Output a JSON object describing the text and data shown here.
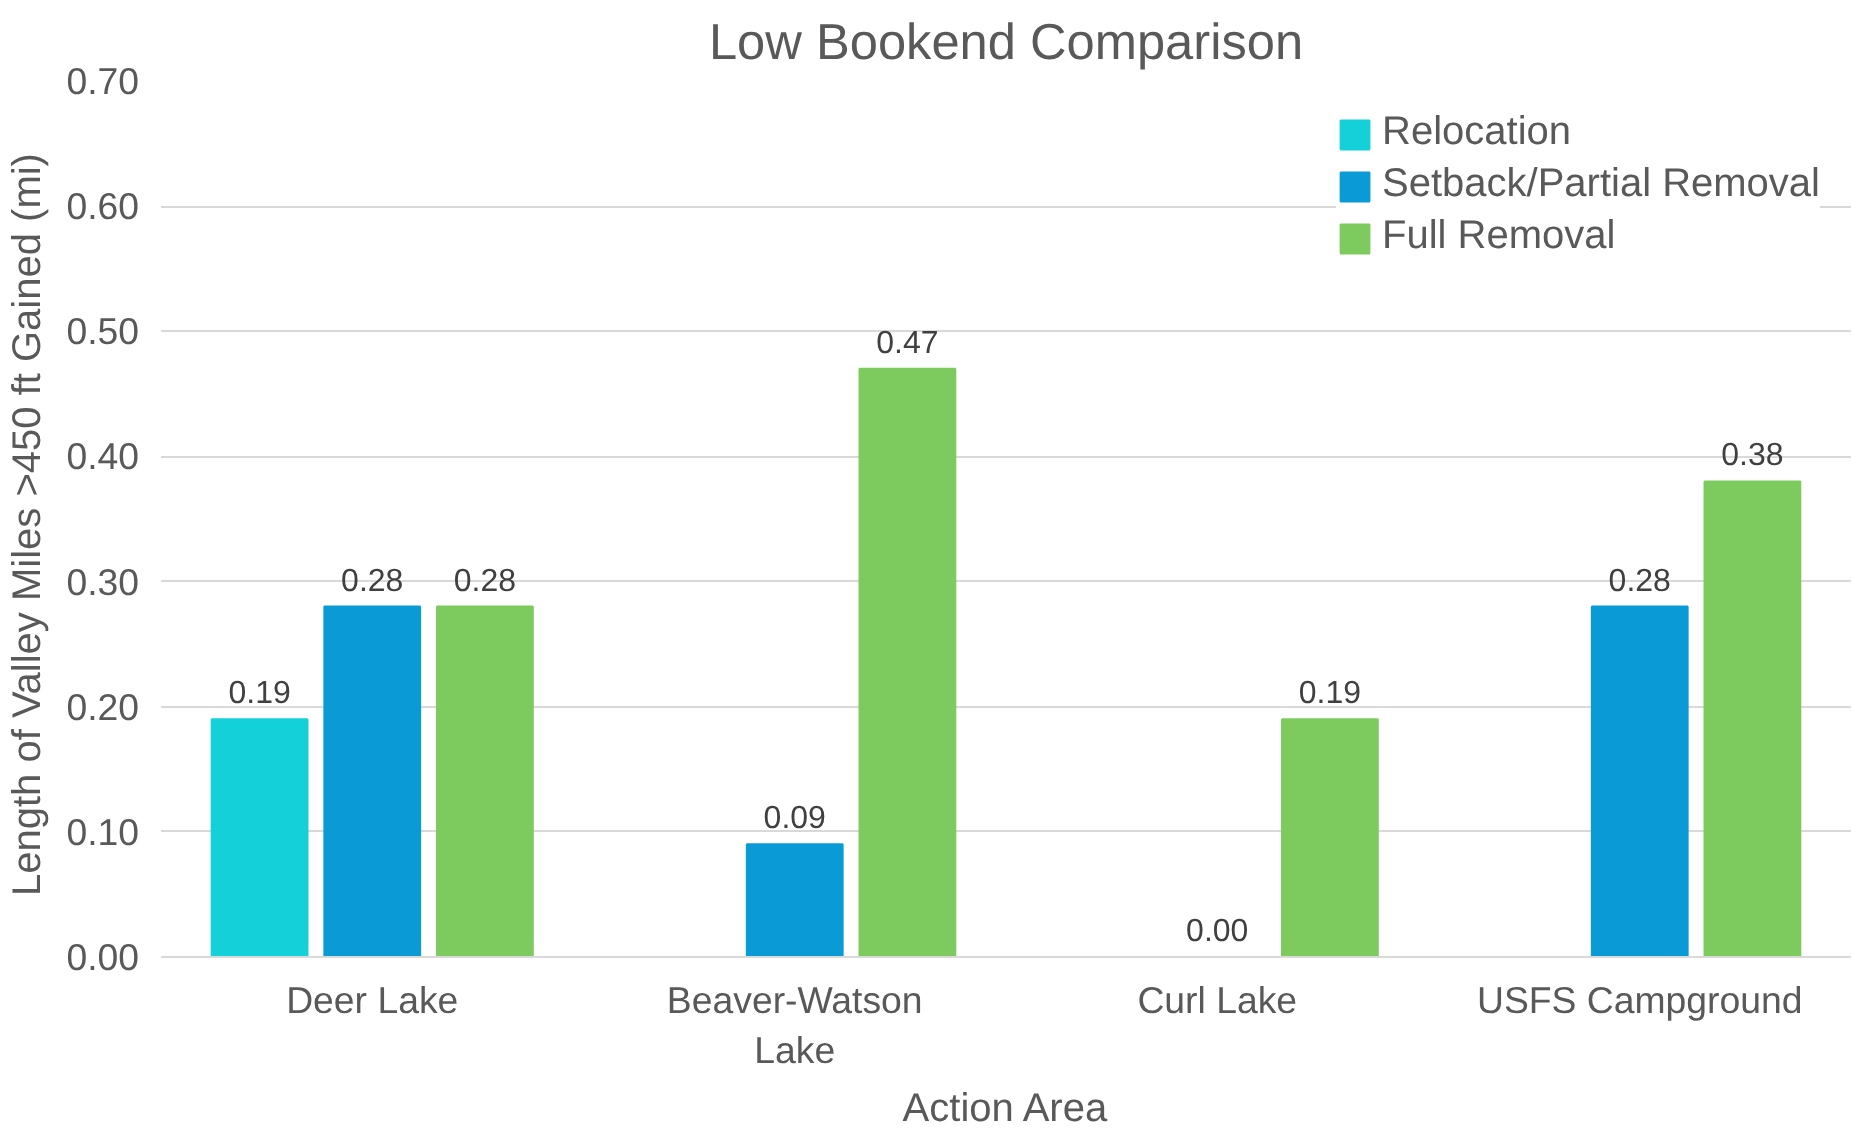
{
  "chart_data": {
    "type": "bar",
    "title": "Low Bookend Comparison",
    "xlabel": "Action Area",
    "ylabel": "Length of Valley Miles >450 ft Gained  (mi)",
    "categories": [
      "Deer Lake",
      "Beaver-Watson Lake",
      "Curl Lake",
      "USFS Campground"
    ],
    "series": [
      {
        "name": "Relocation",
        "color": "#14d0d9",
        "values": [
          0.19,
          null,
          null,
          null
        ],
        "value_labels": [
          "0.19",
          null,
          null,
          null
        ]
      },
      {
        "name": "Setback/Partial Removal",
        "color": "#0a9bd7",
        "values": [
          0.28,
          0.09,
          0,
          0.28
        ],
        "value_labels": [
          "0.28",
          "0.09",
          "0.00",
          "0.28"
        ]
      },
      {
        "name": "Full Removal",
        "color": "#7dcb5f",
        "values": [
          0.28,
          0.47,
          0.19,
          0.38
        ],
        "value_labels": [
          "0.28",
          "0.47",
          "0.19",
          "0.38"
        ]
      }
    ],
    "ylim": [
      0,
      0.7
    ],
    "yticks": [
      {
        "value": 0,
        "label": "0.00"
      },
      {
        "value": 0.1,
        "label": "0.10"
      },
      {
        "value": 0.2,
        "label": "0.20"
      },
      {
        "value": 0.3,
        "label": "0.30"
      },
      {
        "value": 0.4,
        "label": "0.40"
      },
      {
        "value": 0.5,
        "label": "0.50"
      },
      {
        "value": 0.6,
        "label": "0.60"
      },
      {
        "value": 0.7,
        "label": "0.70"
      }
    ],
    "grid": "y",
    "legend": "top right"
  }
}
